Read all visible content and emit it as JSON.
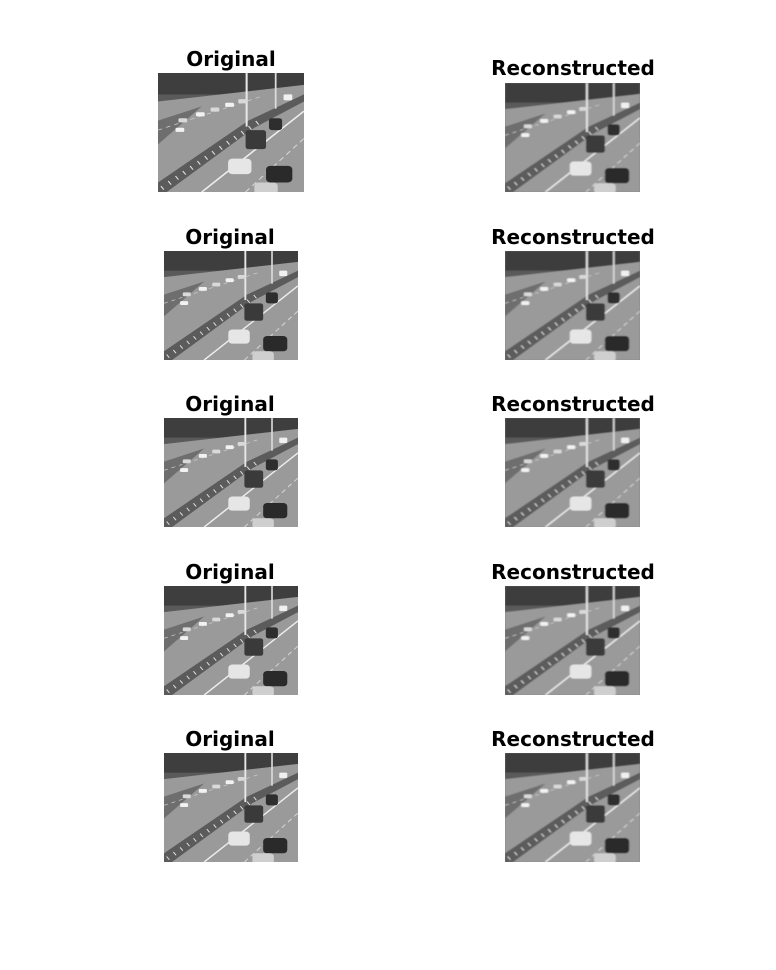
{
  "figure": {
    "rows": [
      {
        "original_title": "Original",
        "reconstructed_title": "Reconstructed"
      },
      {
        "original_title": "Original",
        "reconstructed_title": "Reconstructed"
      },
      {
        "original_title": "Original",
        "reconstructed_title": "Reconstructed"
      },
      {
        "original_title": "Original",
        "reconstructed_title": "Reconstructed"
      },
      {
        "original_title": "Original",
        "reconstructed_title": "Reconstructed"
      }
    ]
  },
  "image_content": "grayscale highway traffic frame"
}
